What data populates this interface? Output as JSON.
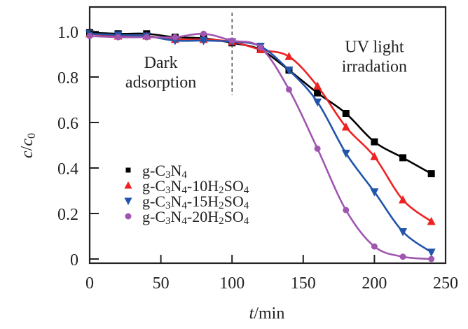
{
  "chart_data": {
    "type": "line",
    "title": "",
    "xlabel": "t/min",
    "xlabel_italic_part": "t",
    "xlabel_rest": "/min",
    "ylabel": "c/c0",
    "xlim": [
      0,
      250
    ],
    "ylim": [
      0,
      1.0
    ],
    "xticks": [
      0,
      50,
      100,
      150,
      200,
      250
    ],
    "xtick_labels": [
      "0",
      "50",
      "100",
      "150",
      "200",
      "250"
    ],
    "yticks": [
      0,
      0.2,
      0.4,
      0.6,
      0.8,
      1.0
    ],
    "ytick_labels": [
      "0",
      "0.2",
      "0.4",
      "0.6",
      "0.8",
      "1.0"
    ],
    "grid": false,
    "legend_position": "center-left",
    "divider": {
      "x": 100,
      "style": "dashed"
    },
    "annotations": [
      {
        "lines": [
          "Dark",
          "adsorption"
        ],
        "x": 50,
        "y": 0.84
      },
      {
        "lines": [
          "UV light",
          "irradation"
        ],
        "x": 200,
        "y": 0.91
      }
    ],
    "x": [
      0,
      20,
      40,
      60,
      80,
      100,
      120,
      140,
      160,
      180,
      200,
      220,
      240
    ],
    "series": [
      {
        "name": "g-C3N4",
        "label_parts": [
          [
            "g-C",
            ""
          ],
          [
            "3",
            "sub"
          ],
          [
            "N",
            ""
          ],
          [
            "4",
            "sub"
          ]
        ],
        "color": "#000000",
        "marker": "square",
        "values": [
          0.995,
          0.99,
          0.99,
          0.975,
          0.97,
          0.95,
          0.92,
          0.83,
          0.73,
          0.64,
          0.515,
          0.445,
          0.375
        ]
      },
      {
        "name": "g-C3N4-10H2SO4",
        "label_parts": [
          [
            "g-C",
            ""
          ],
          [
            "3",
            "sub"
          ],
          [
            "N",
            ""
          ],
          [
            "4",
            "sub"
          ],
          [
            "-10H",
            ""
          ],
          [
            "2",
            "sub"
          ],
          [
            "SO",
            ""
          ],
          [
            "4",
            "sub"
          ]
        ],
        "color": "#ee2222",
        "marker": "triangle-up",
        "values": [
          0.99,
          0.98,
          0.98,
          0.965,
          0.965,
          0.955,
          0.92,
          0.89,
          0.76,
          0.58,
          0.45,
          0.26,
          0.165
        ]
      },
      {
        "name": "g-C3N4-15H2SO4",
        "label_parts": [
          [
            "g-C",
            ""
          ],
          [
            "3",
            "sub"
          ],
          [
            "N",
            ""
          ],
          [
            "4",
            "sub"
          ],
          [
            "-15H",
            ""
          ],
          [
            "2",
            "sub"
          ],
          [
            "SO",
            ""
          ],
          [
            "4",
            "sub"
          ]
        ],
        "color": "#2255aa",
        "marker": "triangle-down",
        "values": [
          0.99,
          0.985,
          0.98,
          0.96,
          0.96,
          0.955,
          0.935,
          0.83,
          0.69,
          0.465,
          0.295,
          0.12,
          0.03
        ]
      },
      {
        "name": "g-C3N4-20H2SO4",
        "label_parts": [
          [
            "g-C",
            ""
          ],
          [
            "3",
            "sub"
          ],
          [
            "N",
            ""
          ],
          [
            "4",
            "sub"
          ],
          [
            "-20H",
            ""
          ],
          [
            "2",
            "sub"
          ],
          [
            "SO",
            ""
          ],
          [
            "4",
            "sub"
          ]
        ],
        "color": "#a055b0",
        "marker": "circle",
        "values": [
          0.98,
          0.975,
          0.975,
          0.975,
          0.99,
          0.96,
          0.93,
          0.745,
          0.485,
          0.215,
          0.055,
          0.01,
          0.0
        ]
      }
    ]
  }
}
